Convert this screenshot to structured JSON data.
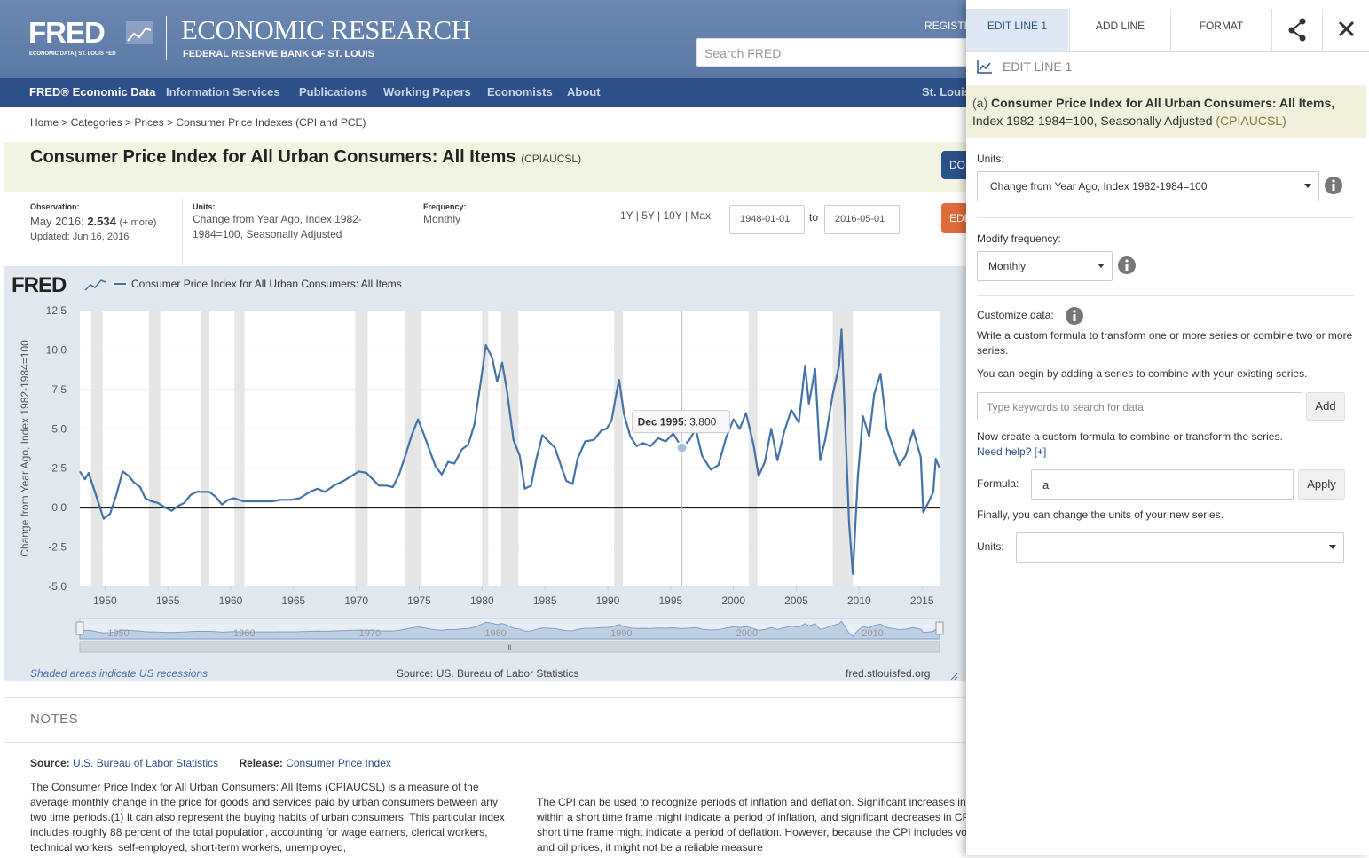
{
  "header": {
    "logo": "FRED",
    "logo_sub": "ECONOMIC DATA | ST. LOUIS FED",
    "org_title": "ECONOMIC RESEARCH",
    "org_sub": "FEDERAL RESERVE BANK OF ST. LOUIS",
    "register": "REGISTE",
    "search_placeholder": "Search FRED"
  },
  "nav": {
    "items": [
      "FRED® Economic Data",
      "Information Services",
      "Publications",
      "Working Papers",
      "Economists",
      "About"
    ],
    "right": "St. Louis"
  },
  "breadcrumb": "Home > Categories > Prices > Consumer Price Indexes (CPI and PCE)",
  "series": {
    "title": "Consumer Price Index for All Urban Consumers: All Items",
    "id": "(CPIAUCSL)",
    "download_btn": "DO",
    "edit_btn": "EDI"
  },
  "meta": {
    "observation_label": "Observation:",
    "observation": "May 2016:",
    "observation_value": "2.534",
    "more": "(+ more)",
    "updated": "Updated: Jun 16, 2016",
    "units_label": "Units:",
    "units": "Change from Year Ago, Index 1982-1984=100, Seasonally Adjusted",
    "frequency_label": "Frequency:",
    "frequency": "Monthly",
    "ranges": "1Y | 5Y | 10Y | Max",
    "start": "1948-01-01",
    "to": "to",
    "end": "2016-05-01"
  },
  "chart_data": {
    "type": "line",
    "logo": "FRED",
    "y_label": "Change from Year Ago, Index 1982-1984=100",
    "x": [
      1948.0,
      1948.4,
      1948.7,
      1949.2,
      1949.6,
      1949.9,
      1950.4,
      1950.9,
      1951.4,
      1951.9,
      1952.3,
      1952.8,
      1953.2,
      1953.7,
      1954.2,
      1954.8,
      1955.3,
      1955.8,
      1956.3,
      1956.8,
      1957.3,
      1957.8,
      1958.3,
      1958.8,
      1959.3,
      1959.8,
      1960.3,
      1961.0,
      1961.8,
      1962.5,
      1963.3,
      1964.0,
      1964.8,
      1965.5,
      1966.3,
      1966.9,
      1967.5,
      1968.2,
      1969.0,
      1969.6,
      1970.2,
      1970.8,
      1971.3,
      1971.8,
      1972.4,
      1972.9,
      1973.4,
      1973.9,
      1974.4,
      1974.9,
      1975.3,
      1975.8,
      1976.3,
      1976.8,
      1977.3,
      1977.8,
      1978.4,
      1978.9,
      1979.4,
      1979.9,
      1980.3,
      1980.8,
      1981.2,
      1981.6,
      1982.0,
      1982.5,
      1983.0,
      1983.4,
      1983.9,
      1984.3,
      1984.8,
      1985.3,
      1985.8,
      1986.3,
      1986.7,
      1987.2,
      1987.6,
      1988.2,
      1988.9,
      1989.5,
      1989.9,
      1990.3,
      1990.7,
      1990.9,
      1991.3,
      1991.8,
      1992.3,
      1992.8,
      1993.4,
      1994.0,
      1994.6,
      1995.2,
      1995.9,
      1996.5,
      1997.0,
      1997.5,
      1998.2,
      1998.8,
      1999.4,
      2000.0,
      2000.5,
      2001.0,
      2001.6,
      2002.0,
      2002.5,
      2003.0,
      2003.5,
      2004.0,
      2004.6,
      2005.2,
      2005.7,
      2006.0,
      2006.5,
      2006.9,
      2007.3,
      2007.9,
      2008.4,
      2008.6,
      2008.9,
      2009.2,
      2009.5,
      2009.9,
      2010.3,
      2010.8,
      2011.2,
      2011.7,
      2012.2,
      2012.7,
      2013.2,
      2013.7,
      2014.3,
      2014.9,
      2015.1,
      2015.5,
      2015.9,
      2016.1,
      2016.4
    ],
    "series": [
      {
        "name": "Consumer Price Index for All Urban Consumers: All Items",
        "color": "#4572a7",
        "values": [
          2.3,
          1.8,
          2.2,
          1.0,
          0.0,
          -0.7,
          -0.4,
          0.8,
          2.3,
          2.0,
          1.6,
          1.3,
          0.6,
          0.4,
          0.3,
          0.0,
          -0.2,
          0.1,
          0.3,
          0.8,
          1.0,
          1.0,
          1.0,
          0.7,
          0.2,
          0.5,
          0.6,
          0.4,
          0.4,
          0.4,
          0.4,
          0.5,
          0.5,
          0.6,
          1.0,
          1.2,
          1.0,
          1.4,
          1.7,
          2.0,
          2.3,
          2.2,
          1.8,
          1.4,
          1.4,
          1.3,
          2.1,
          3.3,
          4.6,
          5.6,
          4.8,
          3.7,
          2.6,
          2.1,
          2.9,
          2.8,
          3.7,
          4.0,
          5.3,
          8.0,
          10.3,
          9.5,
          8.0,
          9.2,
          7.3,
          4.3,
          3.3,
          1.2,
          1.4,
          3.0,
          4.6,
          4.2,
          3.8,
          2.6,
          1.7,
          1.5,
          3.1,
          4.2,
          4.3,
          4.9,
          5.0,
          5.5,
          7.3,
          8.1,
          5.9,
          4.5,
          3.9,
          4.1,
          3.9,
          4.4,
          4.2,
          4.7,
          3.8,
          4.3,
          5.0,
          3.3,
          2.4,
          2.7,
          4.4,
          5.6,
          5.0,
          6.0,
          4.0,
          2.0,
          2.9,
          5.0,
          3.0,
          4.7,
          6.2,
          5.4,
          9.0,
          6.6,
          8.8,
          3.0,
          4.3,
          7.2,
          9.0,
          11.3,
          5.0,
          -1.0,
          -4.2,
          2.0,
          5.8,
          4.5,
          7.2,
          8.5,
          5.0,
          3.8,
          2.7,
          3.3,
          4.9,
          3.2,
          -0.3,
          0.3,
          1.0,
          3.1,
          2.5
        ]
      }
    ],
    "xlim": [
      1948,
      2016.4
    ],
    "xticks": [
      1950,
      1955,
      1960,
      1965,
      1970,
      1975,
      1980,
      1985,
      1990,
      1995,
      2000,
      2005,
      2010,
      2015
    ],
    "ylim": [
      -5,
      12.5
    ],
    "yticks": [
      12.5,
      {
        "value": 10,
        "label": "10.0"
      },
      7.5,
      {
        "value": 5,
        "label": "5.0"
      },
      2.5,
      {
        "value": 0,
        "label": "0.0"
      },
      -2.5,
      {
        "value": -5,
        "label": "-5.0"
      }
    ],
    "grid": true,
    "recessions": [
      [
        1948.9,
        1949.8
      ],
      [
        1953.5,
        1954.4
      ],
      [
        1957.6,
        1958.3
      ],
      [
        1960.3,
        1961.1
      ],
      [
        1969.9,
        1970.9
      ],
      [
        1973.9,
        1975.2
      ],
      [
        1980.0,
        1980.5
      ],
      [
        1981.5,
        1982.9
      ],
      [
        1990.5,
        1991.2
      ],
      [
        2001.2,
        2001.9
      ],
      [
        2007.9,
        2009.5
      ]
    ],
    "recession_color": "#e6e6e6",
    "tooltip": {
      "date": "Dec 1995",
      "x": 1995.9,
      "y": 3.8,
      "label": ": 3.800"
    },
    "navigator_ticks": [
      1950,
      1960,
      1970,
      1980,
      1990,
      2000,
      2010
    ]
  },
  "chart_footer": {
    "recessions_note": "Shaded areas indicate US recessions",
    "source": "Source: US. Bureau of Labor Statistics",
    "site": "fred.stlouisfed.org"
  },
  "notes": {
    "heading": "NOTES",
    "source_label": "Source:",
    "source": "U.S. Bureau of Labor Statistics",
    "release_label": "Release:",
    "release": "Consumer Price Index",
    "para1": "The Consumer Price Index for All Urban Consumers: All Items (CPIAUCSL) is a measure of the average monthly change in the price for goods and services paid by urban consumers between any two time periods.(1) It can also represent the buying habits of urban consumers. This particular index includes roughly 88 percent of the total population, accounting for wage earners, clerical workers, technical workers, self-employed, short-term workers, unemployed,",
    "para2": "The CPI can be used to recognize periods of inflation and deflation. Significant increases in the CPI within a short time frame might indicate a period of inflation, and significant decreases in CPI within a short time frame might indicate a period of deflation. However, because the CPI includes volatile food and oil prices, it might not be a reliable measure"
  },
  "panel": {
    "tabs": [
      "EDIT LINE 1",
      "ADD LINE",
      "FORMAT"
    ],
    "heading": "EDIT LINE 1",
    "series_tag": "(a)",
    "series_title": "Consumer Price Index for All Urban Consumers: All Items,",
    "series_rest": "Index 1982-1984=100, Seasonally Adjusted",
    "series_id": "(CPIAUCSL)",
    "units_label": "Units:",
    "units_value": "Change from Year Ago, Index 1982-1984=100",
    "freq_label": "Modify frequency:",
    "freq_value": "Monthly",
    "customize_label": "Customize data:",
    "customize_text1": "Write a custom formula to transform one or more series or combine two or more series.",
    "customize_text2": "You can begin by adding a series to combine with your existing series.",
    "search_placeholder": "Type keywords to search for data",
    "add": "Add",
    "formula_help_text": "Now create a custom formula to combine or transform the series.",
    "need_help": "Need help? [+]",
    "formula_label": "Formula:",
    "formula_value": "a",
    "apply": "Apply",
    "final_text": "Finally, you can change the units of your new series.",
    "units2_label": "Units:"
  }
}
